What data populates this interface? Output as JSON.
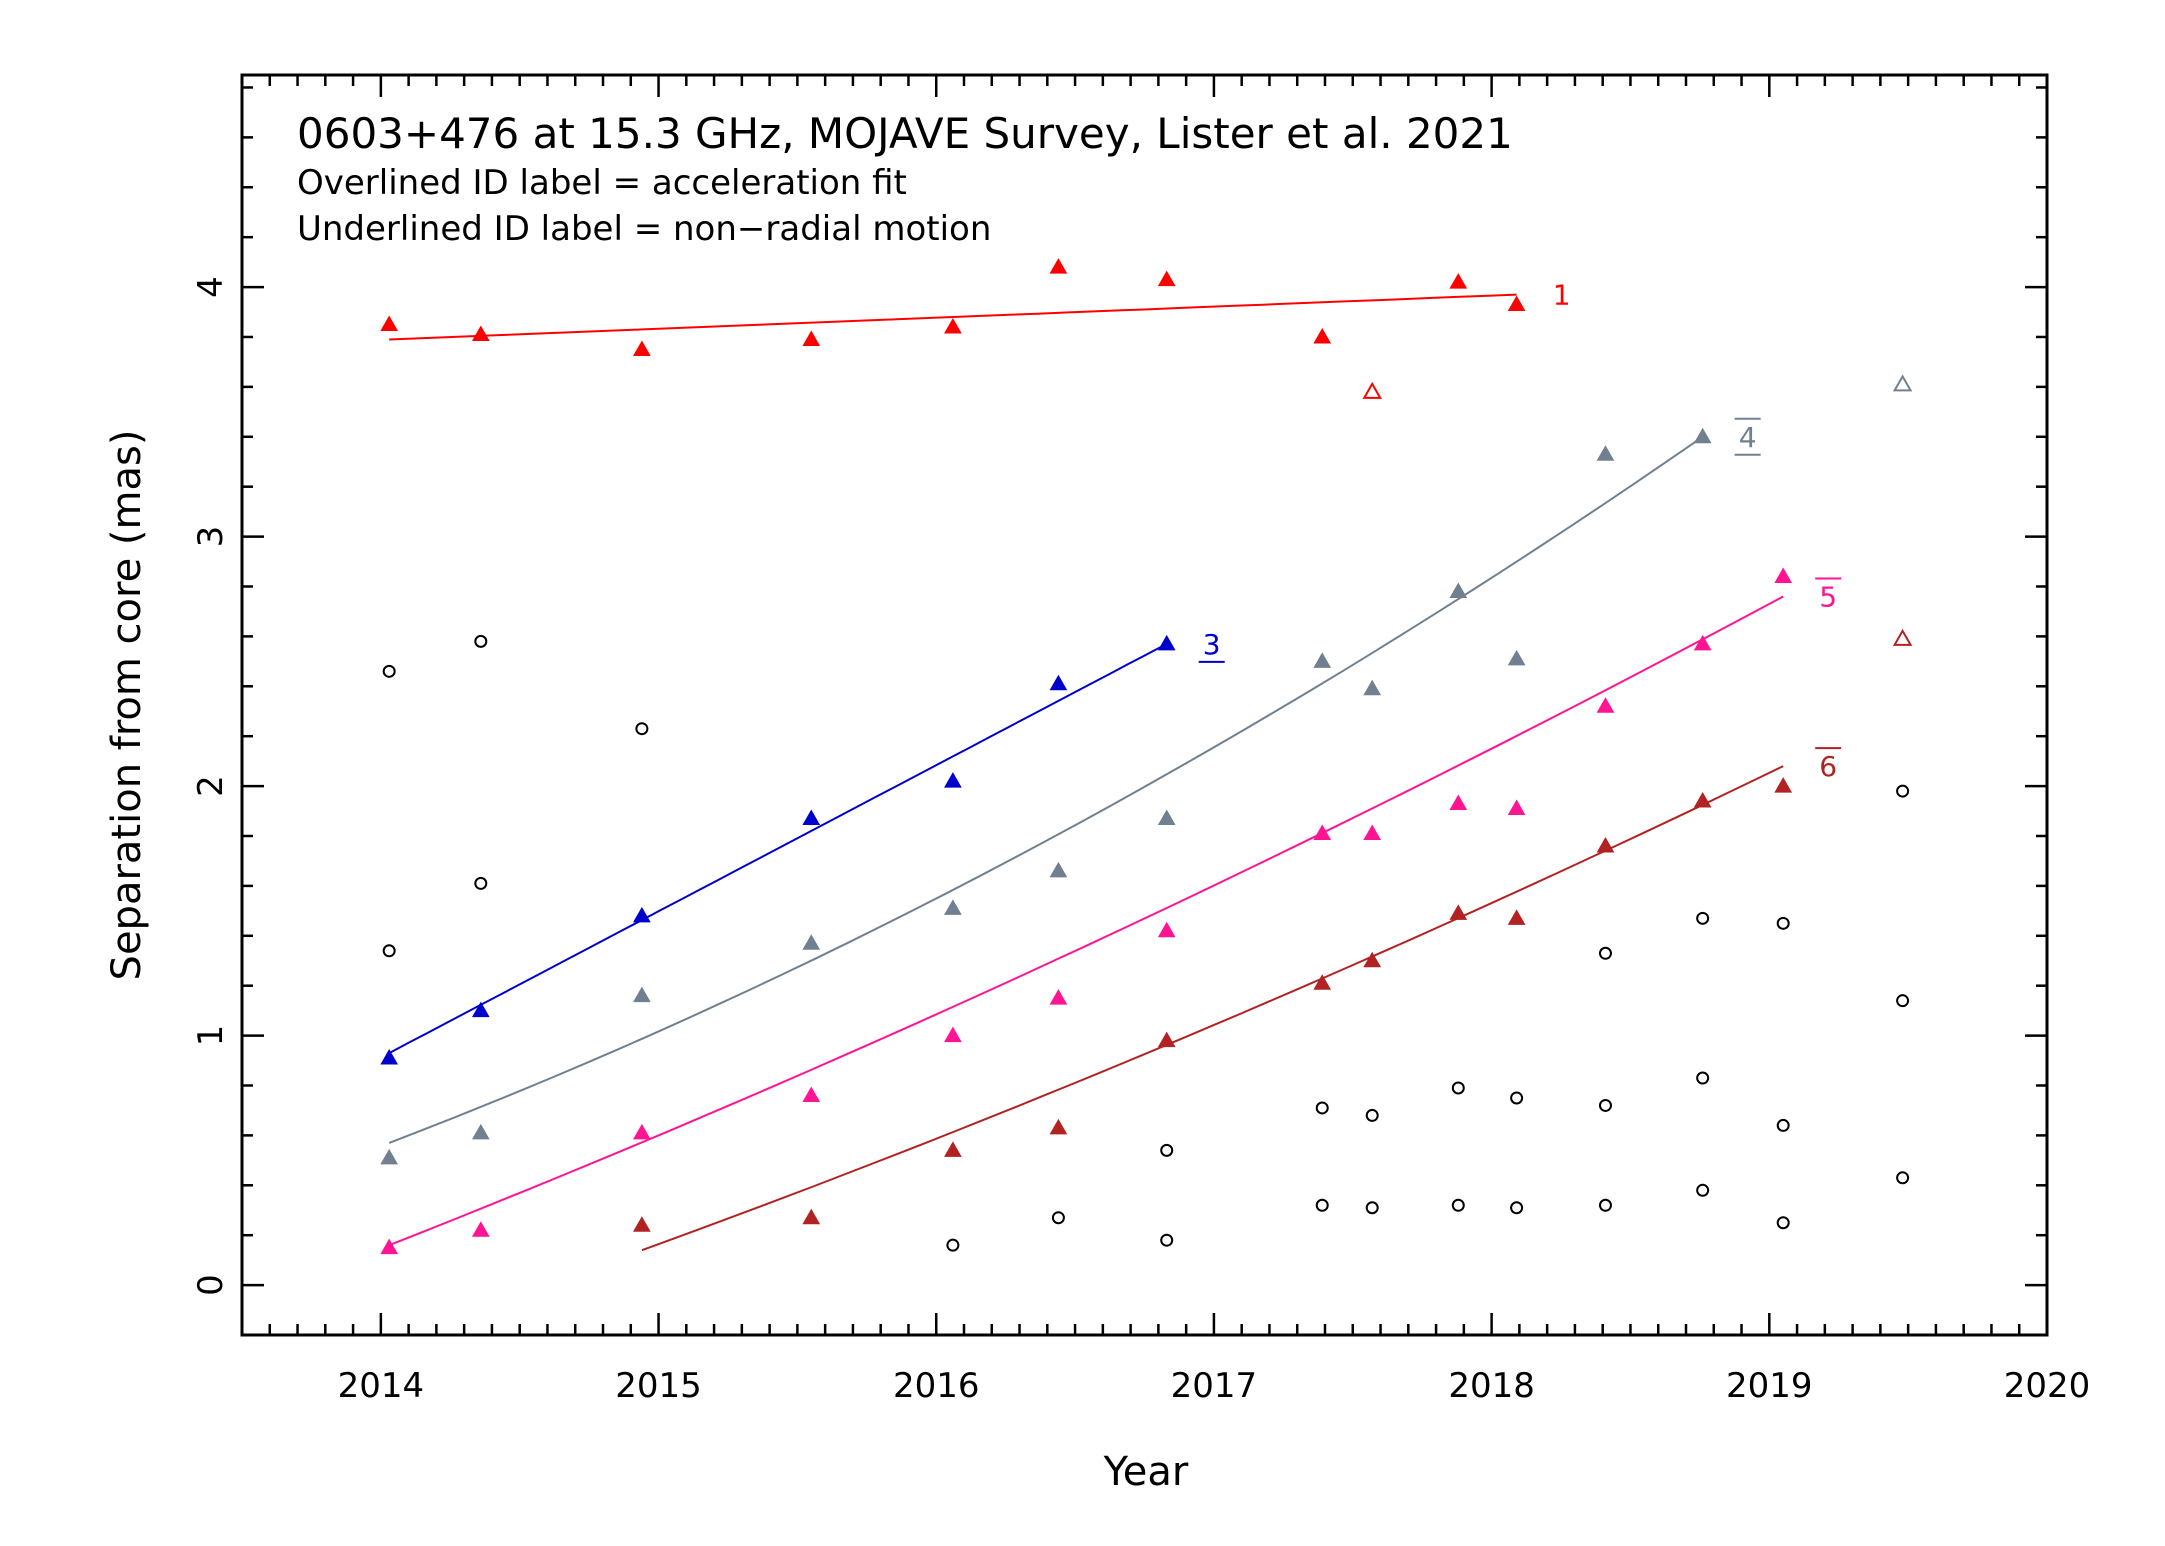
{
  "chart_data": {
    "type": "scatter",
    "title": "0603+476 at 15.3 GHz, MOJAVE Survey, Lister et al. 2021",
    "subtitle_lines": [
      "Overlined ID label = acceleration fit",
      "Underlined ID label = non−radial motion"
    ],
    "xlabel": "Year",
    "ylabel": "Separation from core (mas)",
    "xlim": [
      2013.5,
      2020.0
    ],
    "ylim": [
      -0.2,
      4.85
    ],
    "x_ticks": [
      2014,
      2015,
      2016,
      2017,
      2018,
      2019,
      2020
    ],
    "y_ticks": [
      0,
      1,
      2,
      3,
      4
    ],
    "series": [
      {
        "id": "1",
        "label_style": "plain",
        "color": "#ff0000",
        "points": [
          [
            2014.03,
            3.85
          ],
          [
            2014.36,
            3.81
          ],
          [
            2014.94,
            3.75
          ],
          [
            2015.55,
            3.79
          ],
          [
            2016.06,
            3.84
          ],
          [
            2016.44,
            4.08
          ],
          [
            2016.83,
            4.03
          ],
          [
            2017.39,
            3.8
          ],
          [
            2017.88,
            4.02
          ],
          [
            2018.09,
            3.93
          ]
        ],
        "fit": {
          "x0": 2014.03,
          "x1": 2018.09,
          "type": "linear",
          "y_start": 3.79,
          "y_end": 3.97
        },
        "open_points": [
          [
            2017.57,
            3.58
          ]
        ]
      },
      {
        "id": "3",
        "label_style": "underline",
        "color": "#0000cc",
        "points": [
          [
            2014.03,
            0.91
          ],
          [
            2014.36,
            1.1
          ],
          [
            2014.94,
            1.48
          ],
          [
            2015.55,
            1.87
          ],
          [
            2016.06,
            2.02
          ],
          [
            2016.44,
            2.41
          ],
          [
            2016.83,
            2.57
          ]
        ],
        "fit": {
          "x0": 2014.03,
          "x1": 2016.83,
          "type": "linear",
          "y_start": 0.93,
          "y_end": 2.57
        },
        "open_points": []
      },
      {
        "id": "4",
        "label_style": "overline-underline",
        "color": "#708090",
        "points": [
          [
            2014.03,
            0.51
          ],
          [
            2014.36,
            0.61
          ],
          [
            2014.94,
            1.16
          ],
          [
            2015.55,
            1.37
          ],
          [
            2016.06,
            1.51
          ],
          [
            2016.44,
            1.66
          ],
          [
            2016.83,
            1.87
          ],
          [
            2017.39,
            2.5
          ],
          [
            2017.57,
            2.39
          ],
          [
            2017.88,
            2.78
          ],
          [
            2018.09,
            2.51
          ],
          [
            2018.41,
            3.33
          ],
          [
            2018.76,
            3.4
          ]
        ],
        "fit": {
          "x0": 2014.03,
          "x1": 2018.76,
          "type": "quadratic",
          "y_start": 0.57,
          "y_mid": 1.78,
          "y_end": 3.4
        },
        "open_points": [
          [
            2019.48,
            3.61
          ]
        ]
      },
      {
        "id": "5",
        "label_style": "overline",
        "color": "#ff1493",
        "points": [
          [
            2014.03,
            0.15
          ],
          [
            2014.36,
            0.22
          ],
          [
            2014.94,
            0.61
          ],
          [
            2015.55,
            0.76
          ],
          [
            2016.06,
            1.0
          ],
          [
            2016.44,
            1.15
          ],
          [
            2016.83,
            1.42
          ],
          [
            2017.39,
            1.81
          ],
          [
            2017.57,
            1.81
          ],
          [
            2017.88,
            1.93
          ],
          [
            2018.09,
            1.91
          ],
          [
            2018.41,
            2.32
          ],
          [
            2018.76,
            2.57
          ],
          [
            2019.05,
            2.84
          ]
        ],
        "fit": {
          "x0": 2014.03,
          "x1": 2019.05,
          "type": "quadratic",
          "y_start": 0.16,
          "y_mid": 1.36,
          "y_end": 2.76
        },
        "open_points": []
      },
      {
        "id": "6",
        "label_style": "overline",
        "color": "#b22222",
        "points": [
          [
            2014.94,
            0.24
          ],
          [
            2015.55,
            0.27
          ],
          [
            2016.06,
            0.54
          ],
          [
            2016.44,
            0.63
          ],
          [
            2016.83,
            0.98
          ],
          [
            2017.39,
            1.21
          ],
          [
            2017.57,
            1.3
          ],
          [
            2017.88,
            1.49
          ],
          [
            2018.09,
            1.47
          ],
          [
            2018.41,
            1.76
          ],
          [
            2018.76,
            1.94
          ],
          [
            2019.05,
            2.0
          ]
        ],
        "fit": {
          "x0": 2014.94,
          "x1": 2019.05,
          "type": "quadratic",
          "y_start": 0.14,
          "y_mid": 1.04,
          "y_end": 2.08
        },
        "open_points": [
          [
            2019.48,
            2.59
          ]
        ]
      }
    ],
    "unassigned_points": [
      [
        2014.03,
        2.46
      ],
      [
        2014.03,
        1.34
      ],
      [
        2014.36,
        2.58
      ],
      [
        2014.36,
        1.61
      ],
      [
        2014.94,
        2.23
      ],
      [
        2016.06,
        0.16
      ],
      [
        2016.44,
        0.27
      ],
      [
        2016.83,
        0.54
      ],
      [
        2016.83,
        0.18
      ],
      [
        2017.39,
        0.71
      ],
      [
        2017.39,
        0.32
      ],
      [
        2017.57,
        0.68
      ],
      [
        2017.57,
        0.31
      ],
      [
        2017.88,
        0.79
      ],
      [
        2017.88,
        0.32
      ],
      [
        2018.09,
        0.75
      ],
      [
        2018.09,
        0.31
      ],
      [
        2018.41,
        1.33
      ],
      [
        2018.41,
        0.72
      ],
      [
        2018.41,
        0.32
      ],
      [
        2018.76,
        1.47
      ],
      [
        2018.76,
        0.83
      ],
      [
        2018.76,
        0.38
      ],
      [
        2019.05,
        1.45
      ],
      [
        2019.05,
        0.64
      ],
      [
        2019.05,
        0.25
      ],
      [
        2019.48,
        1.98
      ],
      [
        2019.48,
        1.14
      ],
      [
        2019.48,
        0.43
      ]
    ],
    "unassigned_color": "#000000",
    "grid": false,
    "legend": "none"
  }
}
